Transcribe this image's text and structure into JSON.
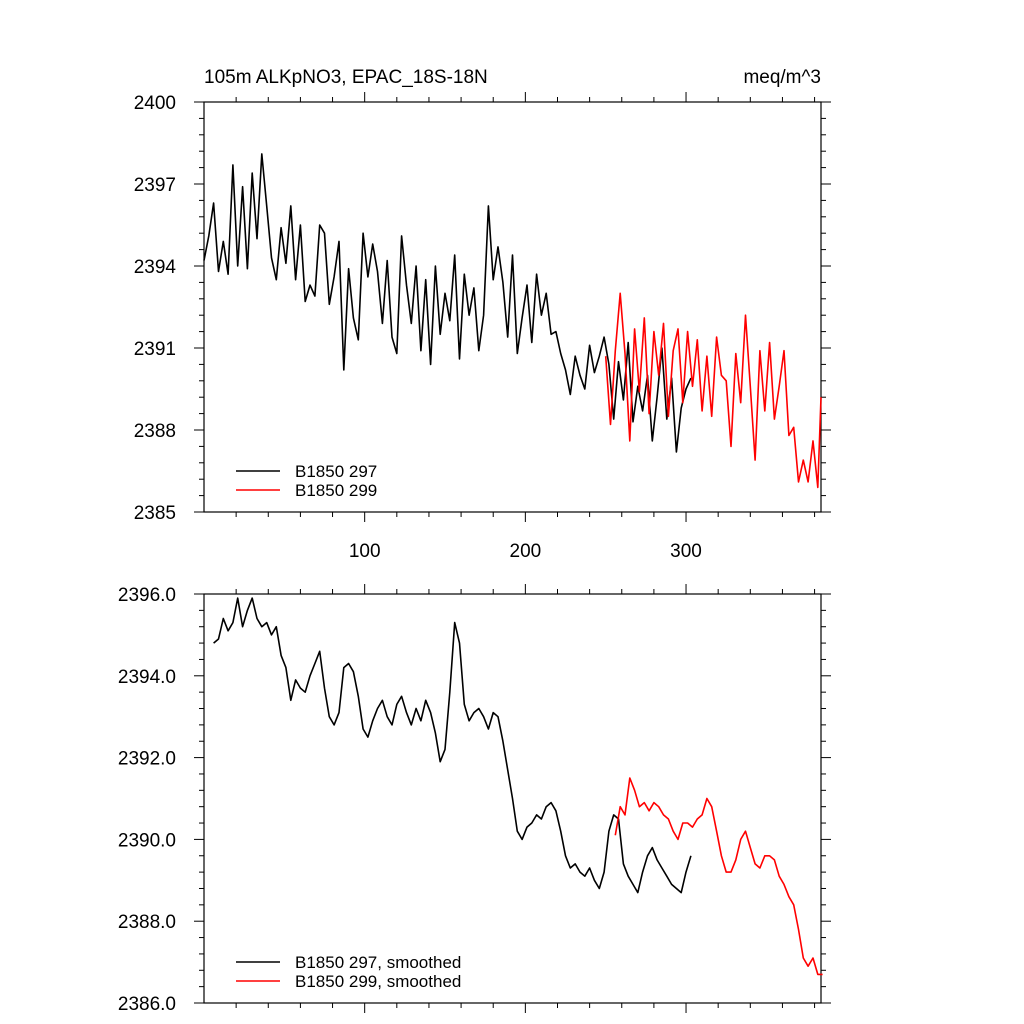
{
  "colors": {
    "series_a": "#000000",
    "series_b": "#ff0000"
  },
  "chart_data": [
    {
      "type": "line",
      "title": "105m ALKpNO3, EPAC_18S-18N",
      "units": "meq/m^3",
      "xlim": [
        0,
        384
      ],
      "ylim": [
        2385,
        2400
      ],
      "x_ticks": [
        100,
        200,
        300
      ],
      "x_tick_labels": [
        "100",
        "200",
        "300"
      ],
      "y_ticks": [
        2385,
        2388,
        2391,
        2394,
        2397,
        2400
      ],
      "y_tick_labels": [
        "2385",
        "2388",
        "2391",
        "2394",
        "2397",
        "2400"
      ],
      "legend": [
        "B1850 297",
        "B1850 299"
      ],
      "legend_position": "bottom-left",
      "series": [
        {
          "name": "B1850 297",
          "color": "#000000",
          "x": [
            0,
            3,
            6,
            9,
            12,
            15,
            18,
            21,
            24,
            27,
            30,
            33,
            36,
            39,
            42,
            45,
            48,
            51,
            54,
            57,
            60,
            63,
            66,
            69,
            72,
            75,
            78,
            81,
            84,
            87,
            90,
            93,
            96,
            99,
            102,
            105,
            108,
            111,
            114,
            117,
            120,
            123,
            126,
            129,
            132,
            135,
            138,
            141,
            144,
            147,
            150,
            153,
            156,
            159,
            162,
            165,
            168,
            171,
            174,
            177,
            180,
            183,
            186,
            189,
            192,
            195,
            198,
            201,
            204,
            207,
            210,
            213,
            216,
            219,
            222,
            225,
            228,
            231,
            234,
            237,
            240,
            243,
            246,
            249,
            252,
            255,
            258,
            261,
            264,
            267,
            270,
            273,
            276,
            279,
            282,
            285,
            288,
            291,
            294,
            297,
            300,
            303
          ],
          "values": [
            2394.2,
            2395.1,
            2396.3,
            2393.8,
            2394.9,
            2393.7,
            2397.7,
            2394.0,
            2396.9,
            2393.9,
            2397.4,
            2395.0,
            2398.1,
            2396.2,
            2394.3,
            2393.5,
            2395.4,
            2394.1,
            2396.2,
            2393.5,
            2395.5,
            2392.7,
            2393.3,
            2392.9,
            2395.5,
            2395.2,
            2392.6,
            2393.6,
            2394.9,
            2390.2,
            2393.9,
            2392.1,
            2391.3,
            2395.2,
            2393.6,
            2394.8,
            2393.8,
            2391.9,
            2394.2,
            2391.4,
            2390.8,
            2395.1,
            2393.3,
            2391.9,
            2394.0,
            2390.9,
            2393.5,
            2390.4,
            2394.0,
            2391.5,
            2393.0,
            2392.0,
            2394.4,
            2390.6,
            2393.7,
            2392.2,
            2393.2,
            2390.9,
            2392.2,
            2396.2,
            2393.5,
            2394.7,
            2393.4,
            2391.4,
            2394.4,
            2390.8,
            2392.1,
            2393.3,
            2391.2,
            2393.7,
            2392.2,
            2393.0,
            2391.5,
            2391.6,
            2390.8,
            2390.2,
            2389.3,
            2390.7,
            2390.0,
            2389.5,
            2391.1,
            2390.1,
            2390.7,
            2391.4,
            2390.4,
            2388.4,
            2390.5,
            2389.1,
            2391.2,
            2388.3,
            2389.6,
            2388.7,
            2390.0,
            2387.6,
            2389.2,
            2391.0,
            2388.4,
            2389.9,
            2387.2,
            2388.8,
            2389.5,
            2389.9
          ]
        },
        {
          "name": "B1850 299",
          "color": "#ff0000",
          "x": [
            250,
            253,
            256,
            259,
            262,
            265,
            268,
            271,
            274,
            277,
            280,
            283,
            286,
            289,
            292,
            295,
            298,
            301,
            304,
            307,
            310,
            313,
            316,
            319,
            322,
            325,
            328,
            331,
            334,
            337,
            340,
            343,
            346,
            349,
            352,
            355,
            358,
            361,
            364,
            367,
            370,
            373,
            376,
            379,
            382,
            384
          ],
          "values": [
            2390.7,
            2388.2,
            2390.9,
            2393.0,
            2390.8,
            2387.6,
            2391.7,
            2389.4,
            2392.1,
            2388.6,
            2391.6,
            2390.0,
            2391.9,
            2388.5,
            2390.9,
            2391.7,
            2389.0,
            2391.6,
            2389.6,
            2391.3,
            2388.7,
            2390.7,
            2388.5,
            2391.4,
            2390.0,
            2389.8,
            2387.4,
            2390.8,
            2389.0,
            2392.2,
            2389.6,
            2386.9,
            2390.9,
            2388.7,
            2391.2,
            2388.4,
            2389.6,
            2390.9,
            2387.8,
            2388.1,
            2386.1,
            2386.9,
            2386.1,
            2387.6,
            2385.9,
            2389.2
          ]
        }
      ]
    },
    {
      "type": "line",
      "xlim": [
        0,
        384
      ],
      "ylim": [
        2386.0,
        2396.0
      ],
      "x_ticks": [
        100,
        200,
        300
      ],
      "y_ticks": [
        2386,
        2388,
        2390,
        2392,
        2394,
        2396
      ],
      "y_tick_labels": [
        "2386.0",
        "2388.0",
        "2390.0",
        "2392.0",
        "2394.0",
        "2396.0"
      ],
      "legend": [
        "B1850 297, smoothed",
        "B1850 299, smoothed"
      ],
      "legend_position": "bottom-left",
      "series": [
        {
          "name": "B1850 297, smoothed",
          "color": "#000000",
          "x": [
            6,
            9,
            12,
            15,
            18,
            21,
            24,
            27,
            30,
            33,
            36,
            39,
            42,
            45,
            48,
            51,
            54,
            57,
            60,
            63,
            66,
            69,
            72,
            75,
            78,
            81,
            84,
            87,
            90,
            93,
            96,
            99,
            102,
            105,
            108,
            111,
            114,
            117,
            120,
            123,
            126,
            129,
            132,
            135,
            138,
            141,
            144,
            147,
            150,
            153,
            156,
            159,
            162,
            165,
            168,
            171,
            174,
            177,
            180,
            183,
            186,
            189,
            192,
            195,
            198,
            201,
            204,
            207,
            210,
            213,
            216,
            219,
            222,
            225,
            228,
            231,
            234,
            237,
            240,
            243,
            246,
            249,
            252,
            255,
            258,
            261,
            264,
            267,
            270,
            273,
            276,
            279,
            282,
            285,
            288,
            291,
            294,
            297,
            300,
            303
          ],
          "values": [
            2394.8,
            2394.9,
            2395.4,
            2395.1,
            2395.3,
            2395.9,
            2395.2,
            2395.6,
            2395.9,
            2395.4,
            2395.2,
            2395.3,
            2395.0,
            2395.2,
            2394.5,
            2394.2,
            2393.4,
            2393.9,
            2393.7,
            2393.6,
            2394.0,
            2394.3,
            2394.6,
            2393.7,
            2393.0,
            2392.8,
            2393.1,
            2394.2,
            2394.3,
            2394.1,
            2393.5,
            2392.7,
            2392.5,
            2392.9,
            2393.2,
            2393.4,
            2393.0,
            2392.8,
            2393.3,
            2393.5,
            2393.1,
            2392.8,
            2393.2,
            2392.9,
            2393.4,
            2393.1,
            2392.6,
            2391.9,
            2392.2,
            2393.6,
            2395.3,
            2394.8,
            2393.3,
            2392.9,
            2393.1,
            2393.2,
            2393.0,
            2392.7,
            2393.1,
            2393.0,
            2392.4,
            2391.7,
            2391.0,
            2390.2,
            2390.0,
            2390.3,
            2390.4,
            2390.6,
            2390.5,
            2390.8,
            2390.9,
            2390.7,
            2390.2,
            2389.6,
            2389.3,
            2389.4,
            2389.2,
            2389.1,
            2389.3,
            2389.0,
            2388.8,
            2389.2,
            2390.2,
            2390.6,
            2390.5,
            2389.4,
            2389.1,
            2388.9,
            2388.7,
            2389.2,
            2389.6,
            2389.8,
            2389.5,
            2389.3,
            2389.1,
            2388.9,
            2388.8,
            2388.7,
            2389.2,
            2389.6
          ]
        },
        {
          "name": "B1850 299, smoothed",
          "color": "#ff0000",
          "x": [
            256,
            259,
            262,
            265,
            268,
            271,
            274,
            277,
            280,
            283,
            286,
            289,
            292,
            295,
            298,
            301,
            304,
            307,
            310,
            313,
            316,
            319,
            322,
            325,
            328,
            331,
            334,
            337,
            340,
            343,
            346,
            349,
            352,
            355,
            358,
            361,
            364,
            367,
            370,
            373,
            376,
            379,
            382,
            385
          ],
          "values": [
            2390.1,
            2390.8,
            2390.6,
            2391.5,
            2391.2,
            2390.8,
            2390.9,
            2390.7,
            2390.9,
            2390.8,
            2390.6,
            2390.5,
            2390.2,
            2390.0,
            2390.4,
            2390.4,
            2390.3,
            2390.5,
            2390.6,
            2391.0,
            2390.8,
            2390.2,
            2389.6,
            2389.2,
            2389.2,
            2389.5,
            2390.0,
            2390.2,
            2389.8,
            2389.4,
            2389.3,
            2389.6,
            2389.6,
            2389.5,
            2389.1,
            2388.9,
            2388.6,
            2388.4,
            2387.8,
            2387.1,
            2386.9,
            2387.1,
            2386.7,
            2386.7
          ]
        }
      ]
    }
  ]
}
